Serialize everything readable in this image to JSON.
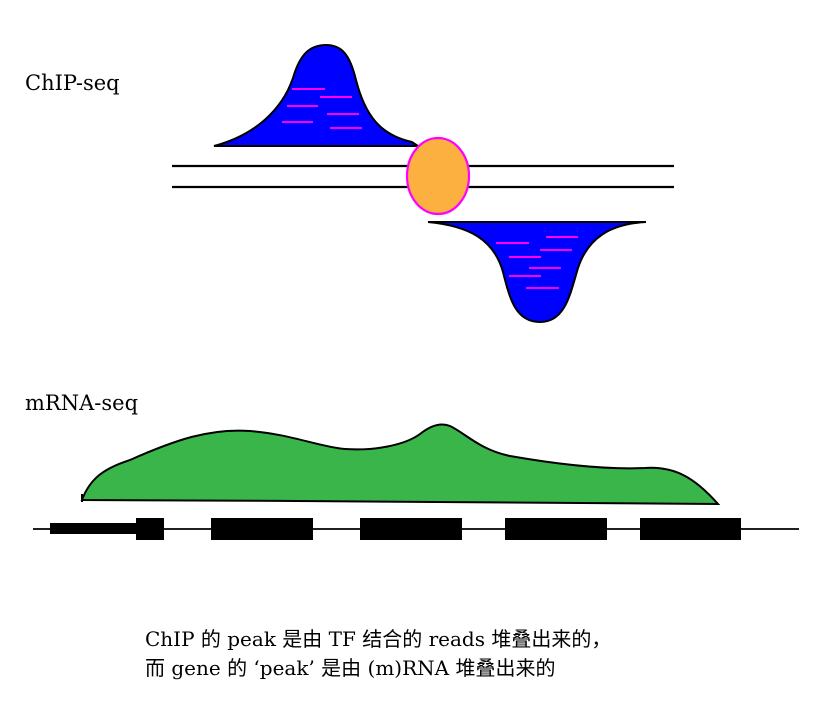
{
  "labels": {
    "chip": "ChIP-seq",
    "mrna": "mRNA-seq"
  },
  "caption": {
    "line1": "ChIP 的 peak 是由 TF 结合的 reads 堆叠出来的，",
    "line2": "而 gene 的 ‘peak’ 是由 (m)RNA 堆叠出来的"
  },
  "colors": {
    "chip_peak": "#0000ff",
    "read": "#ff00ff",
    "tf_fill": "#fbb040",
    "tf_outline": "#ff00ff",
    "mrna_coverage": "#39b54a",
    "dna": "#000000",
    "exon": "#000000"
  },
  "icons": {
    "tf_protein": "orange-oval",
    "reads": "magenta-dashes"
  }
}
